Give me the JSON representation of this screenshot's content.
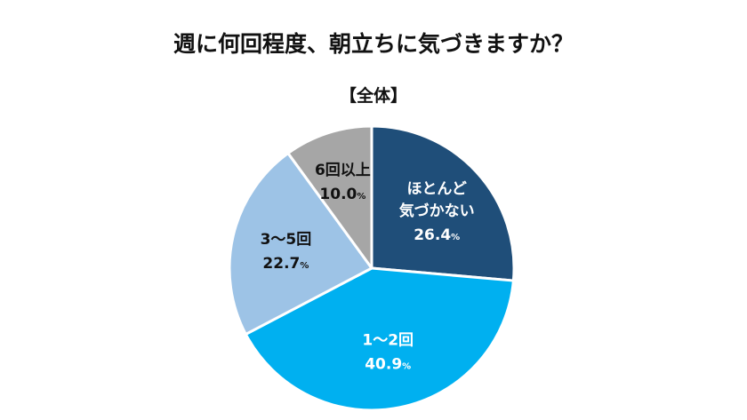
{
  "title": "週に何回程度、朝立ちに気づきますか？",
  "subtitle": "【全体】",
  "chart_data": {
    "type": "pie",
    "unit": "%",
    "slices": [
      {
        "label_lines": [
          "ほとんど",
          "気づかない"
        ],
        "value": 26.4,
        "value_text": "26.4",
        "color": "#1f4e79",
        "text_color": "#ffffff"
      },
      {
        "label_lines": [
          "1～2回"
        ],
        "value": 40.9,
        "value_text": "40.9",
        "color": "#00b0f0",
        "text_color": "#ffffff"
      },
      {
        "label_lines": [
          "3～5回"
        ],
        "value": 22.7,
        "value_text": "22.7",
        "color": "#9dc3e6",
        "text_color": "#111111"
      },
      {
        "label_lines": [
          "6回以上"
        ],
        "value": 10.0,
        "value_text": "10.0",
        "color": "#a6a6a6",
        "text_color": "#111111"
      }
    ]
  }
}
